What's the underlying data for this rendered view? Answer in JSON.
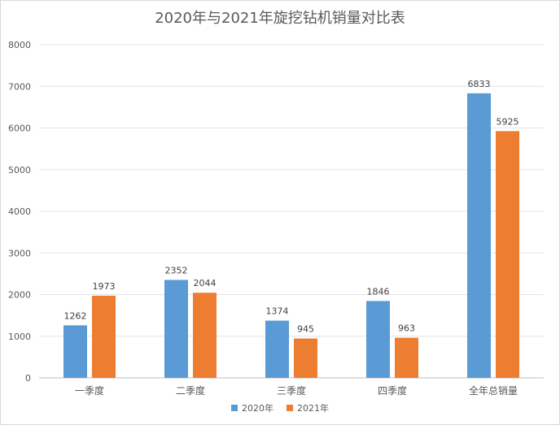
{
  "chart_data": {
    "type": "bar",
    "title": "2020年与2021年旋挖钻机销量对比表",
    "xlabel": "",
    "ylabel": "",
    "categories": [
      "一季度",
      "二季度",
      "三季度",
      "四季度",
      "全年总销量"
    ],
    "series": [
      {
        "name": "2020年",
        "color": "#5b9bd5",
        "values": [
          1262,
          2352,
          1374,
          1846,
          6833
        ]
      },
      {
        "name": "2021年",
        "color": "#ed7d31",
        "values": [
          1973,
          2044,
          945,
          963,
          5925
        ]
      }
    ],
    "ylim": [
      0,
      8000
    ],
    "yticks": [
      0,
      1000,
      2000,
      3000,
      4000,
      5000,
      6000,
      7000,
      8000
    ],
    "grid": true,
    "legend": "bottom",
    "data_labels": true
  }
}
